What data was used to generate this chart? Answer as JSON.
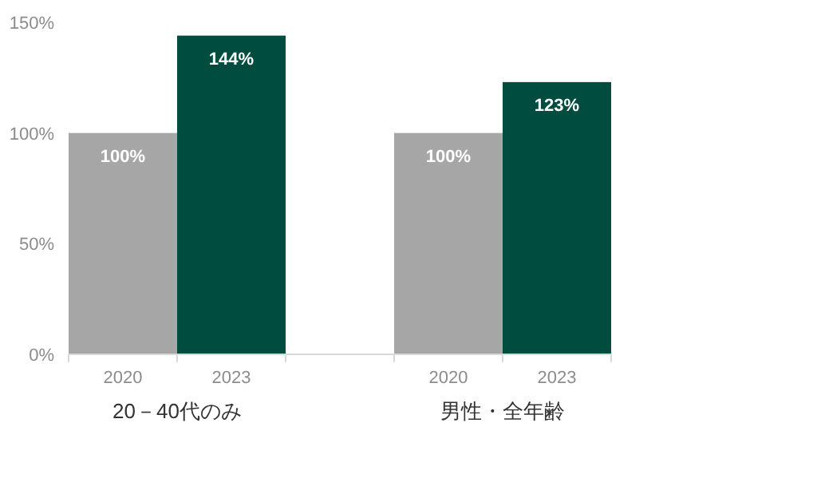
{
  "chart_data": {
    "type": "bar",
    "categories": [
      "20－40代のみ",
      "男性・全年齢"
    ],
    "series": [
      {
        "name": "2020",
        "color": "#a6a6a6",
        "values": [
          100,
          100
        ]
      },
      {
        "name": "2023",
        "color": "#004d40",
        "values": [
          144,
          123
        ]
      }
    ],
    "ylim": [
      0,
      150
    ],
    "yticks": [
      {
        "value": 0,
        "label": "0%"
      },
      {
        "value": 50,
        "label": "50%"
      },
      {
        "value": 100,
        "label": "100%"
      },
      {
        "value": 150,
        "label": "150%"
      }
    ],
    "value_labels": [
      [
        "100%",
        "100%"
      ],
      [
        "144%",
        "123%"
      ]
    ],
    "grid": false,
    "legend": false
  }
}
